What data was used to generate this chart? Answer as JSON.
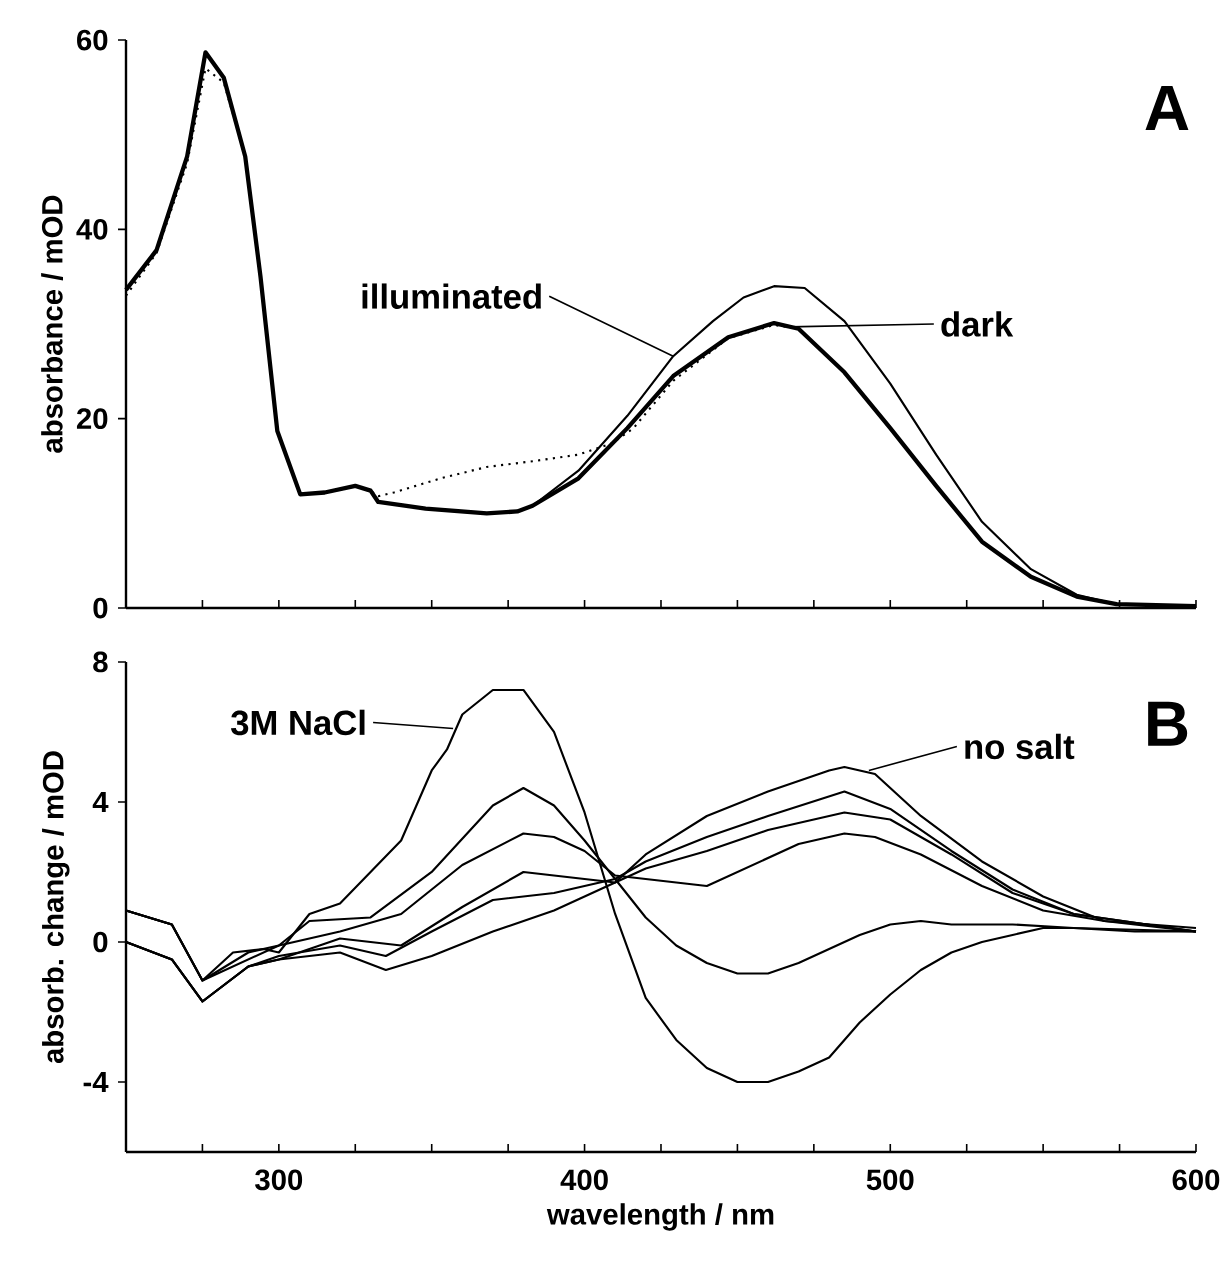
{
  "chart_data": [
    {
      "type": "line",
      "ylabel": "absorbance / mOD",
      "xlim": [
        250,
        600
      ],
      "ylim": [
        0,
        60
      ],
      "yticks": [
        0,
        20,
        40,
        60
      ],
      "tick_labels": "y",
      "xticks": [
        {
          "value": 275,
          "label": null
        },
        300,
        {
          "value": 325,
          "label": null
        },
        {
          "value": 350,
          "label": null
        },
        {
          "value": 375,
          "label": null
        },
        400,
        {
          "value": 425,
          "label": null
        },
        {
          "value": 450,
          "label": null
        },
        {
          "value": 475,
          "label": null
        },
        500,
        {
          "value": 525,
          "label": null
        },
        {
          "value": 550,
          "label": null
        },
        {
          "value": 575,
          "label": null
        },
        600
      ],
      "annotations": [
        "A",
        {
          "text": "illuminated",
          "x": 429,
          "y": 26.6
        },
        "dark"
      ],
      "series": [
        {
          "color": "#000000",
          "line_style": "solid",
          "x": [
            250,
            260,
            270,
            276,
            282,
            289,
            294,
            299.5,
            307,
            315,
            325,
            330,
            332.5,
            348,
            368,
            378,
            383,
            398,
            414,
            429,
            447,
            462,
            470,
            485,
            500,
            515,
            530,
            546,
            561,
            574,
            600
          ],
          "values": [
            33.6,
            37.8,
            47.7,
            58.7,
            56,
            47.7,
            35,
            18.7,
            12,
            12.2,
            12.9,
            12.4,
            11.2,
            10.5,
            10,
            10.2,
            10.8,
            13.7,
            19,
            24.5,
            28.6,
            30.1,
            29.5,
            24.9,
            19,
            12.9,
            7,
            3.3,
            1.2,
            0.4,
            0.2
          ]
        },
        {
          "color": "#000000",
          "line_style": "solid",
          "x": [
            250,
            260,
            270,
            276,
            282,
            289,
            294,
            299.5,
            307,
            315,
            325,
            330,
            332.5,
            348,
            368,
            378,
            383,
            398,
            414,
            429,
            442,
            452,
            462,
            472,
            485,
            500,
            515,
            530,
            546,
            561,
            574,
            600
          ],
          "values": [
            33.6,
            37.8,
            47.7,
            58.7,
            56,
            47.7,
            35,
            18.7,
            12,
            12.2,
            12.9,
            12.4,
            11.2,
            10.5,
            10,
            10.2,
            10.8,
            14.5,
            20.3,
            26.6,
            30.3,
            32.8,
            34,
            33.8,
            30.3,
            23.7,
            16.2,
            9.1,
            4.1,
            1.4,
            0.4,
            0.2
          ]
        },
        {
          "color": "#000000",
          "line_style": "dotted",
          "x": [
            250,
            260,
            270,
            276,
            282,
            289,
            294,
            299.5,
            307,
            315,
            325,
            330,
            332.5,
            337.6,
            353,
            368,
            383,
            398,
            409,
            416,
            429,
            447,
            462,
            470,
            485,
            500,
            515,
            530,
            546,
            561,
            574,
            600
          ],
          "values": [
            33,
            37.5,
            47,
            57,
            55.5,
            47.7,
            35,
            18.7,
            12,
            12.2,
            12.9,
            12.4,
            11.8,
            12.2,
            13.7,
            14.9,
            15.5,
            16.2,
            17.4,
            19,
            24,
            28.5,
            29.9,
            29.5,
            24.9,
            19,
            12.9,
            7,
            3.3,
            1.2,
            0.4,
            0.2
          ]
        }
      ]
    },
    {
      "type": "line",
      "xlabel": "wavelength / nm",
      "ylabel": "absorb. change / mOD",
      "xlim": [
        250,
        600
      ],
      "ylim": [
        -6,
        8
      ],
      "yticks": [
        -4,
        0,
        4,
        8
      ],
      "xticks": [
        {
          "value": 275,
          "label": null
        },
        300,
        {
          "value": 325,
          "label": null
        },
        {
          "value": 350,
          "label": null
        },
        {
          "value": 375,
          "label": null
        },
        400,
        {
          "value": 425,
          "label": null
        },
        {
          "value": 450,
          "label": null
        },
        {
          "value": 475,
          "label": null
        },
        500,
        {
          "value": 525,
          "label": null
        },
        {
          "value": 550,
          "label": null
        },
        {
          "value": 575,
          "label": null
        },
        600
      ],
      "annotations": [
        "B",
        {
          "text": "3M NaCl",
          "x": 357,
          "y": 6.1
        },
        {
          "text": "no salt",
          "x": 493,
          "y": 4.9
        }
      ],
      "series": [
        {
          "color": "#000000",
          "x": [
            250,
            265,
            275,
            285,
            295,
            300,
            310,
            320,
            330,
            340,
            350,
            355,
            360,
            370,
            380,
            390,
            400,
            410,
            420,
            430,
            440,
            450,
            460,
            470,
            480,
            490,
            500,
            510,
            520,
            530,
            540,
            550,
            560,
            580,
            600
          ],
          "values": [
            0.9,
            0.5,
            -1.1,
            -0.3,
            -0.2,
            -0.3,
            0.8,
            1.1,
            2.0,
            2.9,
            4.9,
            5.5,
            6.5,
            7.2,
            7.2,
            6.0,
            3.7,
            0.8,
            -1.6,
            -2.8,
            -3.6,
            -4.0,
            -4.0,
            -3.7,
            -3.3,
            -2.3,
            -1.5,
            -0.8,
            -0.3,
            0.0,
            0.2,
            0.4,
            0.4,
            0.3,
            0.3
          ]
        },
        {
          "color": "#000000",
          "x": [
            250,
            265,
            275,
            290,
            300,
            310,
            330,
            350,
            370,
            380,
            390,
            400,
            410,
            420,
            430,
            440,
            450,
            460,
            470,
            480,
            490,
            500,
            510,
            520,
            540,
            560,
            600
          ],
          "values": [
            0.9,
            0.5,
            -1.1,
            -0.3,
            -0.1,
            0.6,
            0.7,
            2.0,
            3.9,
            4.4,
            3.9,
            2.9,
            1.8,
            0.7,
            -0.1,
            -0.6,
            -0.9,
            -0.9,
            -0.6,
            -0.2,
            0.2,
            0.5,
            0.6,
            0.5,
            0.5,
            0.4,
            0.3
          ]
        },
        {
          "color": "#000000",
          "x": [
            250,
            265,
            275,
            300,
            320,
            340,
            360,
            380,
            390,
            400,
            410,
            420,
            430,
            440,
            450,
            460,
            470,
            485,
            495,
            510,
            530,
            550,
            570,
            600
          ],
          "values": [
            0.9,
            0.5,
            -1.1,
            -0.1,
            0.3,
            0.8,
            2.2,
            3.1,
            3.0,
            2.6,
            1.9,
            1.8,
            1.7,
            1.6,
            2.0,
            2.4,
            2.8,
            3.1,
            3.0,
            2.5,
            1.6,
            0.9,
            0.6,
            0.3
          ]
        },
        {
          "color": "#000000",
          "x": [
            250,
            265,
            275,
            290,
            300,
            320,
            340,
            360,
            380,
            400,
            410,
            420,
            440,
            460,
            485,
            500,
            520,
            540,
            560,
            600
          ],
          "values": [
            0.0,
            -0.5,
            -1.7,
            -0.7,
            -0.5,
            0.1,
            -0.1,
            1.0,
            2.0,
            1.8,
            1.7,
            2.1,
            2.6,
            3.2,
            3.7,
            3.5,
            2.5,
            1.4,
            0.8,
            0.3
          ]
        },
        {
          "color": "#000000",
          "x": [
            250,
            265,
            275,
            290,
            300,
            320,
            335,
            350,
            370,
            390,
            410,
            420,
            440,
            460,
            485,
            500,
            520,
            540,
            560,
            600
          ],
          "values": [
            0.0,
            -0.5,
            -1.7,
            -0.7,
            -0.4,
            -0.1,
            -0.4,
            0.3,
            1.2,
            1.4,
            1.8,
            2.3,
            3.0,
            3.6,
            4.3,
            3.8,
            2.6,
            1.5,
            0.8,
            0.3
          ]
        },
        {
          "color": "#000000",
          "x": [
            250,
            265,
            275,
            290,
            300,
            320,
            335,
            350,
            370,
            390,
            400,
            410,
            420,
            440,
            460,
            480,
            485,
            495,
            510,
            530,
            550,
            570,
            600
          ],
          "values": [
            0.0,
            -0.5,
            -1.7,
            -0.7,
            -0.5,
            -0.3,
            -0.8,
            -0.4,
            0.3,
            0.9,
            1.3,
            1.7,
            2.5,
            3.6,
            4.3,
            4.9,
            5.0,
            4.8,
            3.6,
            2.3,
            1.3,
            0.6,
            0.4
          ]
        }
      ]
    }
  ]
}
